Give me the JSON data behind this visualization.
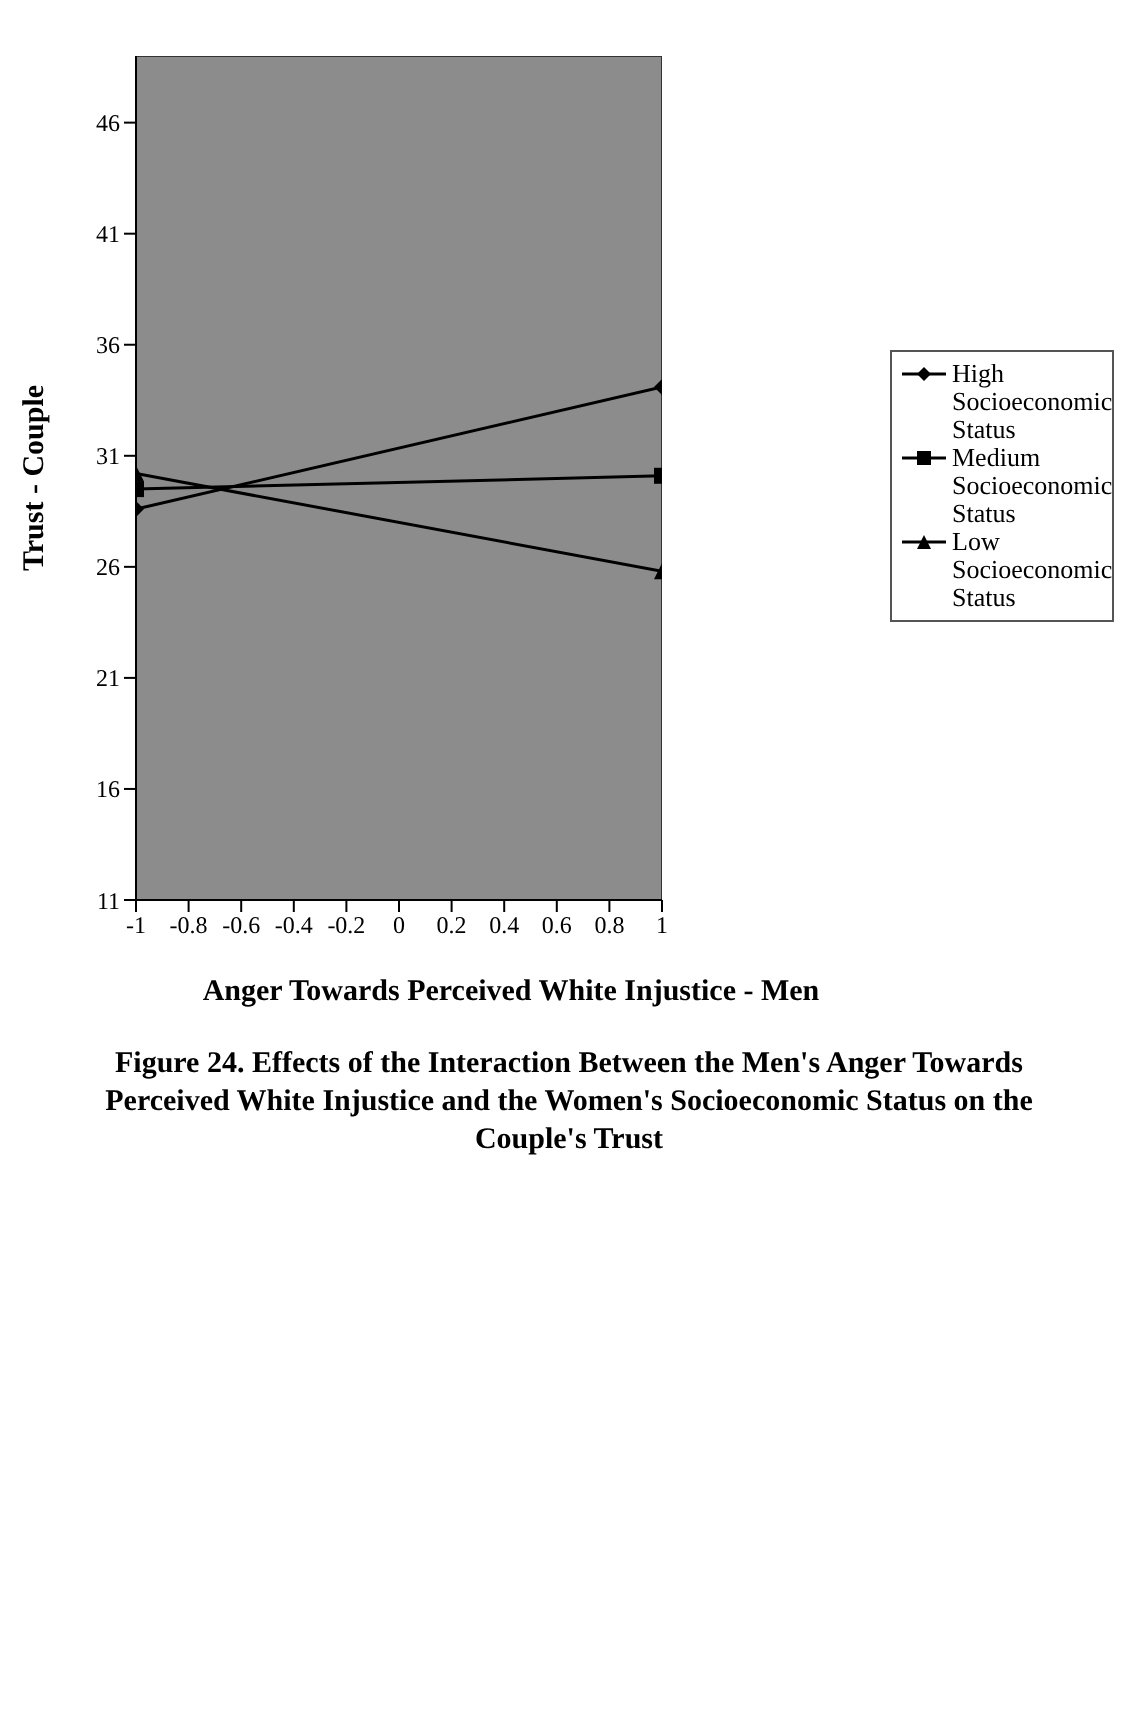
{
  "chart_data": {
    "type": "line",
    "title": "Figure 24.  Effects of the Interaction Between the Men's Anger Towards Perceived White Injustice and the Women's Socioeconomic Status on the Couple's Trust",
    "xlabel": "Anger Towards Perceived White Injustice - Men",
    "ylabel": "Trust - Couple",
    "x": [
      -1,
      1
    ],
    "series": [
      {
        "name": "High Socioeconomic Status",
        "color": "#000000",
        "marker": "diamond",
        "values": [
          28.6,
          34.1
        ]
      },
      {
        "name": "Medium Socioeconomic Status",
        "color": "#000000",
        "marker": "square",
        "values": [
          29.5,
          30.1
        ]
      },
      {
        "name": "Low Socioeconomic Status",
        "color": "#000000",
        "marker": "triangle",
        "values": [
          30.2,
          25.8
        ]
      }
    ],
    "xlim": [
      -1,
      1
    ],
    "xticks": [
      -1,
      -0.8,
      -0.6,
      -0.4,
      -0.2,
      0,
      0.2,
      0.4,
      0.6,
      0.8,
      1
    ],
    "ylim": [
      11,
      49
    ],
    "yticks": [
      11,
      16,
      21,
      26,
      31,
      36,
      41,
      46
    ],
    "legend": "right"
  }
}
